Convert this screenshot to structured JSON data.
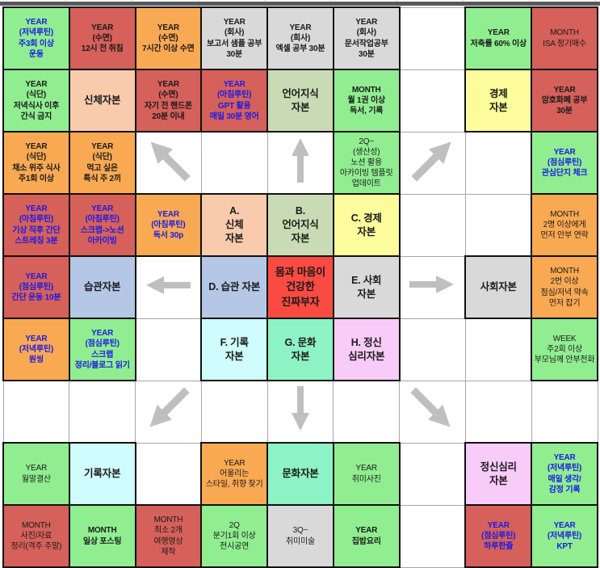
{
  "palette": {
    "green": "#90EE90",
    "red": "#D6605A",
    "orange": "#FAA953",
    "gray": "#D9D9D9",
    "peach": "#F8CBAD",
    "sage": "#C9DBB5",
    "yellow": "#FCFC9C",
    "blue_light": "#B4C7E7",
    "cyan": "#CFFCFC",
    "mint": "#8DF2C4",
    "pink": "#F8CBF8",
    "red_bright": "#FA4B42",
    "arrow": "#BFBFBF",
    "text_blue": "#1A1AE6",
    "text_black": "#1A1A1A",
    "top_bar": "#595959"
  },
  "grid": {
    "rows": 9,
    "cols": 9,
    "center_title": "몸과 마음이 건강한 진짜부자",
    "cells": [
      {
        "r": 0,
        "c": 0,
        "bg": "green",
        "fg": "blue",
        "bold": true,
        "text": "YEAR\n(저녁루틴)\n주3회 이상\n운동"
      },
      {
        "r": 0,
        "c": 1,
        "bg": "red",
        "bold": true,
        "text": "YEAR\n(수면)\n12시 전 취침"
      },
      {
        "r": 0,
        "c": 2,
        "bg": "orange",
        "bold": true,
        "text": "YEAR\n(수면)\n7시간 이상 수면"
      },
      {
        "r": 0,
        "c": 3,
        "bg": "gray",
        "bold": true,
        "text": "YEAR\n(회사)\n보고서 샘플 공부\n30분"
      },
      {
        "r": 0,
        "c": 4,
        "bg": "gray",
        "bold": true,
        "text": "YEAR\n(회사)\n엑셀 공부 30분"
      },
      {
        "r": 0,
        "c": 5,
        "bg": "gray",
        "bold": true,
        "text": "YEAR\n(회사)\n문서작업공부\n30분"
      },
      {
        "r": 0,
        "c": 7,
        "bg": "green",
        "bold": true,
        "text": "YEAR\n저축률 60% 이상"
      },
      {
        "r": 0,
        "c": 8,
        "bg": "red",
        "text": "MONTH\nISA 정기매수"
      },
      {
        "r": 1,
        "c": 0,
        "bg": "green",
        "bold": true,
        "text": "YEAR\n(식단)\n저녁식사 이후\n간식 금지"
      },
      {
        "r": 1,
        "c": 1,
        "bg": "peach",
        "bold": true,
        "size": "m",
        "text": "신체자본"
      },
      {
        "r": 1,
        "c": 2,
        "bg": "red",
        "bold": true,
        "text": "YEAR\n(수면)\n자기 전 핸드폰\n20분 이내"
      },
      {
        "r": 1,
        "c": 3,
        "bg": "red",
        "fg": "blue",
        "bold": true,
        "text": "YEAR\n(아침루틴)\nGPT 활용\n매일 30분 영어"
      },
      {
        "r": 1,
        "c": 4,
        "bg": "sage",
        "bold": true,
        "size": "m",
        "text": "언어지식\n자본"
      },
      {
        "r": 1,
        "c": 5,
        "bg": "green",
        "bold": true,
        "text": "MONTH\n월 1권 이상\n독서, 기록"
      },
      {
        "r": 1,
        "c": 7,
        "bg": "yellow",
        "bold": true,
        "size": "m",
        "text": "경제\n자본"
      },
      {
        "r": 1,
        "c": 8,
        "bg": "red",
        "bold": true,
        "text": "YEAR\n암호화폐 공부\n30분"
      },
      {
        "r": 2,
        "c": 0,
        "bg": "orange",
        "bold": true,
        "text": "YEAR\n(식단)\n채소 위주 식사\n주1회 이상"
      },
      {
        "r": 2,
        "c": 1,
        "bg": "orange",
        "bold": true,
        "text": "YEAR\n(식단)\n먹고 싶은\n특식 주 2끼"
      },
      {
        "r": 2,
        "c": 2,
        "arrow": "up-left"
      },
      {
        "r": 2,
        "c": 4,
        "arrow": "up"
      },
      {
        "r": 2,
        "c": 5,
        "bg": "green",
        "text": "2Q~\n(생산성)\n노션 활용\n아카이빙 템플릿\n업데이트"
      },
      {
        "r": 2,
        "c": 6,
        "arrow": "up-right"
      },
      {
        "r": 2,
        "c": 8,
        "bg": "green",
        "fg": "blue",
        "bold": true,
        "text": "YEAR\n(점심루틴)\n관심단지 체크"
      },
      {
        "r": 3,
        "c": 0,
        "bg": "red",
        "fg": "blue",
        "bold": true,
        "text": "YEAR\n(아침루틴)\n기상 직후 간단\n스트레칭 3분"
      },
      {
        "r": 3,
        "c": 1,
        "bg": "red",
        "fg": "blue",
        "bold": true,
        "text": "YEAR\n(아침루틴)\n스크랩->노션\n아카이빙"
      },
      {
        "r": 3,
        "c": 2,
        "bg": "orange",
        "fg": "blue",
        "bold": true,
        "text": "YEAR\n(아침루틴)\n독서 30p"
      },
      {
        "r": 3,
        "c": 3,
        "bg": "peach",
        "bold": true,
        "size": "m",
        "text": "A.\n신체\n자본"
      },
      {
        "r": 3,
        "c": 4,
        "bg": "sage",
        "bold": true,
        "size": "m",
        "text": "B.\n언어지식\n자본"
      },
      {
        "r": 3,
        "c": 5,
        "bg": "yellow",
        "bold": true,
        "size": "m",
        "text": "C. 경제\n자본"
      },
      {
        "r": 3,
        "c": 8,
        "bg": "orange",
        "text": "MONTH\n2명 이상에게\n먼저 안부 연락"
      },
      {
        "r": 4,
        "c": 0,
        "bg": "red",
        "fg": "blue",
        "bold": true,
        "text": "YEAR\n(점심루틴)\n간단 운동 10분"
      },
      {
        "r": 4,
        "c": 1,
        "bg": "blue_light",
        "bold": true,
        "size": "m",
        "text": "습관자본"
      },
      {
        "r": 4,
        "c": 2,
        "arrow": "left"
      },
      {
        "r": 4,
        "c": 3,
        "bg": "blue_light",
        "bold": true,
        "size": "m",
        "text": "D. 습관 자본"
      },
      {
        "r": 4,
        "c": 4,
        "bg": "red_bright",
        "bold": true,
        "size": "l",
        "text": "몸과 마음이\n건강한\n진짜부자"
      },
      {
        "r": 4,
        "c": 5,
        "bg": "gray",
        "bold": true,
        "size": "m",
        "text": "E. 사회\n자본"
      },
      {
        "r": 4,
        "c": 6,
        "arrow": "right"
      },
      {
        "r": 4,
        "c": 7,
        "bg": "gray",
        "bold": true,
        "size": "m",
        "text": "사회자본"
      },
      {
        "r": 4,
        "c": 8,
        "bg": "orange",
        "text": "MONTH\n2번 이상\n점심/저녁 약속\n먼저 잡기"
      },
      {
        "r": 5,
        "c": 0,
        "bg": "orange",
        "fg": "blue",
        "bold": true,
        "text": "YEAR\n(저녁루틴)\n원씽"
      },
      {
        "r": 5,
        "c": 1,
        "bg": "green",
        "fg": "blue",
        "bold": true,
        "text": "YEAR\n(점심루틴)\n스크랩\n정리/블로그 읽기"
      },
      {
        "r": 5,
        "c": 3,
        "bg": "cyan",
        "bold": true,
        "size": "m",
        "text": "F. 기록\n자본"
      },
      {
        "r": 5,
        "c": 4,
        "bg": "mint",
        "bold": true,
        "size": "m",
        "text": "G. 문화\n자본"
      },
      {
        "r": 5,
        "c": 5,
        "bg": "pink",
        "bold": true,
        "size": "m",
        "text": "H. 정신\n심리자본"
      },
      {
        "r": 5,
        "c": 8,
        "bg": "green",
        "text": "WEEK\n주2회 이상\n부모님께 안부전화"
      },
      {
        "r": 6,
        "c": 2,
        "arrow": "down-left"
      },
      {
        "r": 6,
        "c": 4,
        "arrow": "down"
      },
      {
        "r": 6,
        "c": 6,
        "arrow": "down-right"
      },
      {
        "r": 7,
        "c": 0,
        "bg": "green",
        "text": "YEAR\n월말결산"
      },
      {
        "r": 7,
        "c": 1,
        "bg": "cyan",
        "bold": true,
        "size": "m",
        "text": "기록자본"
      },
      {
        "r": 7,
        "c": 3,
        "bg": "orange",
        "text": "YEAR\n어울리는\n스타일, 취향 찾기"
      },
      {
        "r": 7,
        "c": 4,
        "bg": "mint",
        "bold": true,
        "size": "m",
        "text": "문화자본"
      },
      {
        "r": 7,
        "c": 5,
        "bg": "green",
        "text": "YEAR\n취미사진"
      },
      {
        "r": 7,
        "c": 7,
        "bg": "pink",
        "bold": true,
        "size": "m",
        "text": "정신심리\n자본"
      },
      {
        "r": 7,
        "c": 8,
        "bg": "green",
        "fg": "blue",
        "bold": true,
        "text": "YEAR\n(저녁루틴)\n매일 생각/\n감정 기록"
      },
      {
        "r": 8,
        "c": 0,
        "bg": "red",
        "text": "MONTH\n사진/자료\n정리(격주 주말)"
      },
      {
        "r": 8,
        "c": 1,
        "bg": "green",
        "bold": true,
        "text": "MONTH\n일상 포스팅"
      },
      {
        "r": 8,
        "c": 2,
        "bg": "red",
        "text": "MONTH\n최소 2개\n여행영상\n제작"
      },
      {
        "r": 8,
        "c": 3,
        "bg": "green",
        "text": "2Q\n분기1회 이상\n전시공연"
      },
      {
        "r": 8,
        "c": 4,
        "bg": "gray",
        "text": "3Q~\n취미미술"
      },
      {
        "r": 8,
        "c": 5,
        "bg": "green",
        "bold": true,
        "text": "YEAR\n집밥요리"
      },
      {
        "r": 8,
        "c": 7,
        "bg": "red",
        "fg": "blue",
        "bold": true,
        "text": "YEAR\n(점심루틴)\n하루한줄"
      },
      {
        "r": 8,
        "c": 8,
        "bg": "green",
        "fg": "blue",
        "bold": true,
        "text": "YEAR\n(저녁루틴)\nKPT"
      }
    ]
  }
}
